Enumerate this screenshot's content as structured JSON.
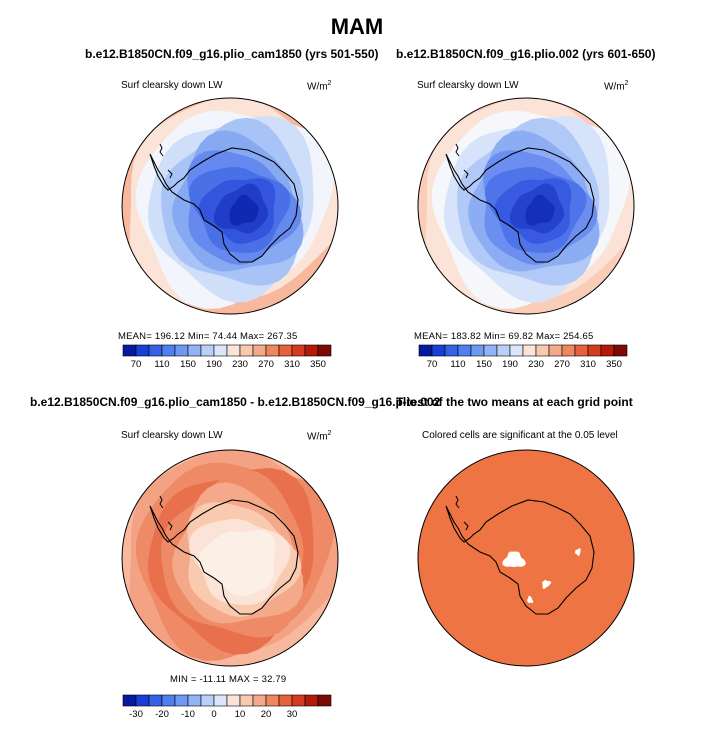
{
  "season": "MAM",
  "chart_data": [
    {
      "type": "heatmap",
      "title": "b.e12.B1850CN.f09_g16.plio_cam1850 (yrs 501-550)",
      "left_label": "Surf clearsky down LW",
      "units_label": "W/m",
      "units_exp": "2",
      "stats_text": "MEAN= 196.12   Min=   74.44   Max= 267.35",
      "mean": 196.12,
      "min": 74.44,
      "max": 267.35,
      "colorbar": {
        "levels": [
          70,
          90,
          110,
          130,
          150,
          170,
          190,
          210,
          230,
          250,
          270,
          290,
          310,
          330,
          350
        ],
        "tick_labels": [
          "70",
          "110",
          "150",
          "190",
          "230",
          "270",
          "310",
          "350"
        ],
        "colors": [
          "#051a9e",
          "#1b3fd6",
          "#3461e6",
          "#4f7ff0",
          "#6e99f3",
          "#92b3f6",
          "#b8cff8",
          "#dbe6fa",
          "#fbe4d7",
          "#f9c9b0",
          "#f4a98a",
          "#ee8660",
          "#e6623c",
          "#d53b1e",
          "#b31a0a",
          "#7d0a05"
        ]
      },
      "field_bands": [
        "#f7b89e",
        "#fbe4d7",
        "#f2f5fb",
        "#cfdef9",
        "#a8c3f6",
        "#86a9f2",
        "#6589ef",
        "#4a70e8",
        "#3355de",
        "#203dc8",
        "#0f29b0"
      ]
    },
    {
      "type": "heatmap",
      "title": "b.e12.B1850CN.f09_g16.plio.002 (yrs 601-650)",
      "left_label": "Surf clearsky down LW",
      "units_label": "W/m",
      "units_exp": "2",
      "stats_text": "MEAN= 183.82   Min=   69.82   Max= 254.65",
      "mean": 183.82,
      "min": 69.82,
      "max": 254.65,
      "colorbar": {
        "levels": [
          70,
          90,
          110,
          130,
          150,
          170,
          190,
          210,
          230,
          250,
          270,
          290,
          310,
          330,
          350
        ],
        "tick_labels": [
          "70",
          "110",
          "150",
          "190",
          "230",
          "270",
          "310",
          "350"
        ],
        "colors": [
          "#051a9e",
          "#1b3fd6",
          "#3461e6",
          "#4f7ff0",
          "#6e99f3",
          "#92b3f6",
          "#b8cff8",
          "#dbe6fa",
          "#fbe4d7",
          "#f9c9b0",
          "#f4a98a",
          "#ee8660",
          "#e6623c",
          "#d53b1e",
          "#b31a0a",
          "#7d0a05"
        ]
      },
      "field_bands": [
        "#f9cdb7",
        "#fbe4d7",
        "#f5f7fb",
        "#d6e3fa",
        "#b0c9f7",
        "#8cadf3",
        "#6b8ef0",
        "#4f74e9",
        "#385ae0",
        "#2442cc",
        "#1430b8"
      ]
    },
    {
      "type": "heatmap",
      "title": "b.e12.B1850CN.f09_g16.plio_cam1850 - b.e12.B1850CN.f09_g16.plio.002",
      "left_label": "Surf clearsky down LW",
      "units_label": "W/m",
      "units_exp": "2",
      "stats_text": "MIN = -11.11  MAX =   32.79",
      "min": -11.11,
      "max": 32.79,
      "colorbar": {
        "levels": [
          -35,
          -30,
          -25,
          -20,
          -15,
          -10,
          -5,
          0,
          5,
          10,
          15,
          20,
          25,
          30,
          35
        ],
        "tick_labels": [
          "-30",
          "-20",
          "-10",
          "0",
          "10",
          "20",
          "30"
        ],
        "colors": [
          "#051a9e",
          "#1b3fd6",
          "#3461e6",
          "#4f7ff0",
          "#6e99f3",
          "#92b3f6",
          "#b8cff8",
          "#dbe6fa",
          "#fbe4d7",
          "#f9c9b0",
          "#f4a98a",
          "#ee8660",
          "#e6623c",
          "#d53b1e",
          "#b31a0a",
          "#7d0a05"
        ]
      },
      "field_bands": [
        "#f7b89e",
        "#f3a283",
        "#ee8a66",
        "#e9704c",
        "#ee8a66",
        "#f4a98a",
        "#f9c9b0",
        "#fbe4d7",
        "#fcefe6",
        "#fcefe6",
        "#fcefe6"
      ]
    },
    {
      "type": "heatmap",
      "title": "T-test of the two means at each grid point",
      "left_label": "Colored cells are significant at the 0.05 level",
      "fill_color": "#ee7444"
    }
  ]
}
